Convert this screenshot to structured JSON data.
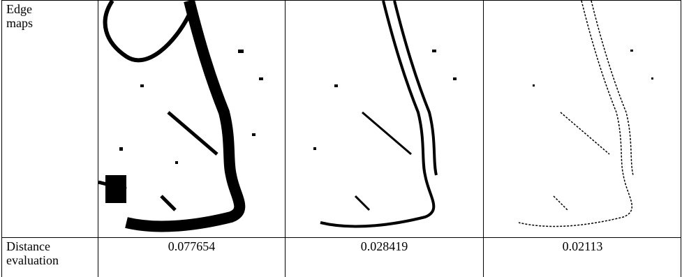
{
  "table": {
    "rows": [
      {
        "label": [
          "Edge",
          "maps"
        ]
      },
      {
        "label": [
          "Distance",
          "evaluation"
        ],
        "cells": [
          "0.077654",
          "0.028419",
          "0.02113"
        ]
      }
    ]
  }
}
